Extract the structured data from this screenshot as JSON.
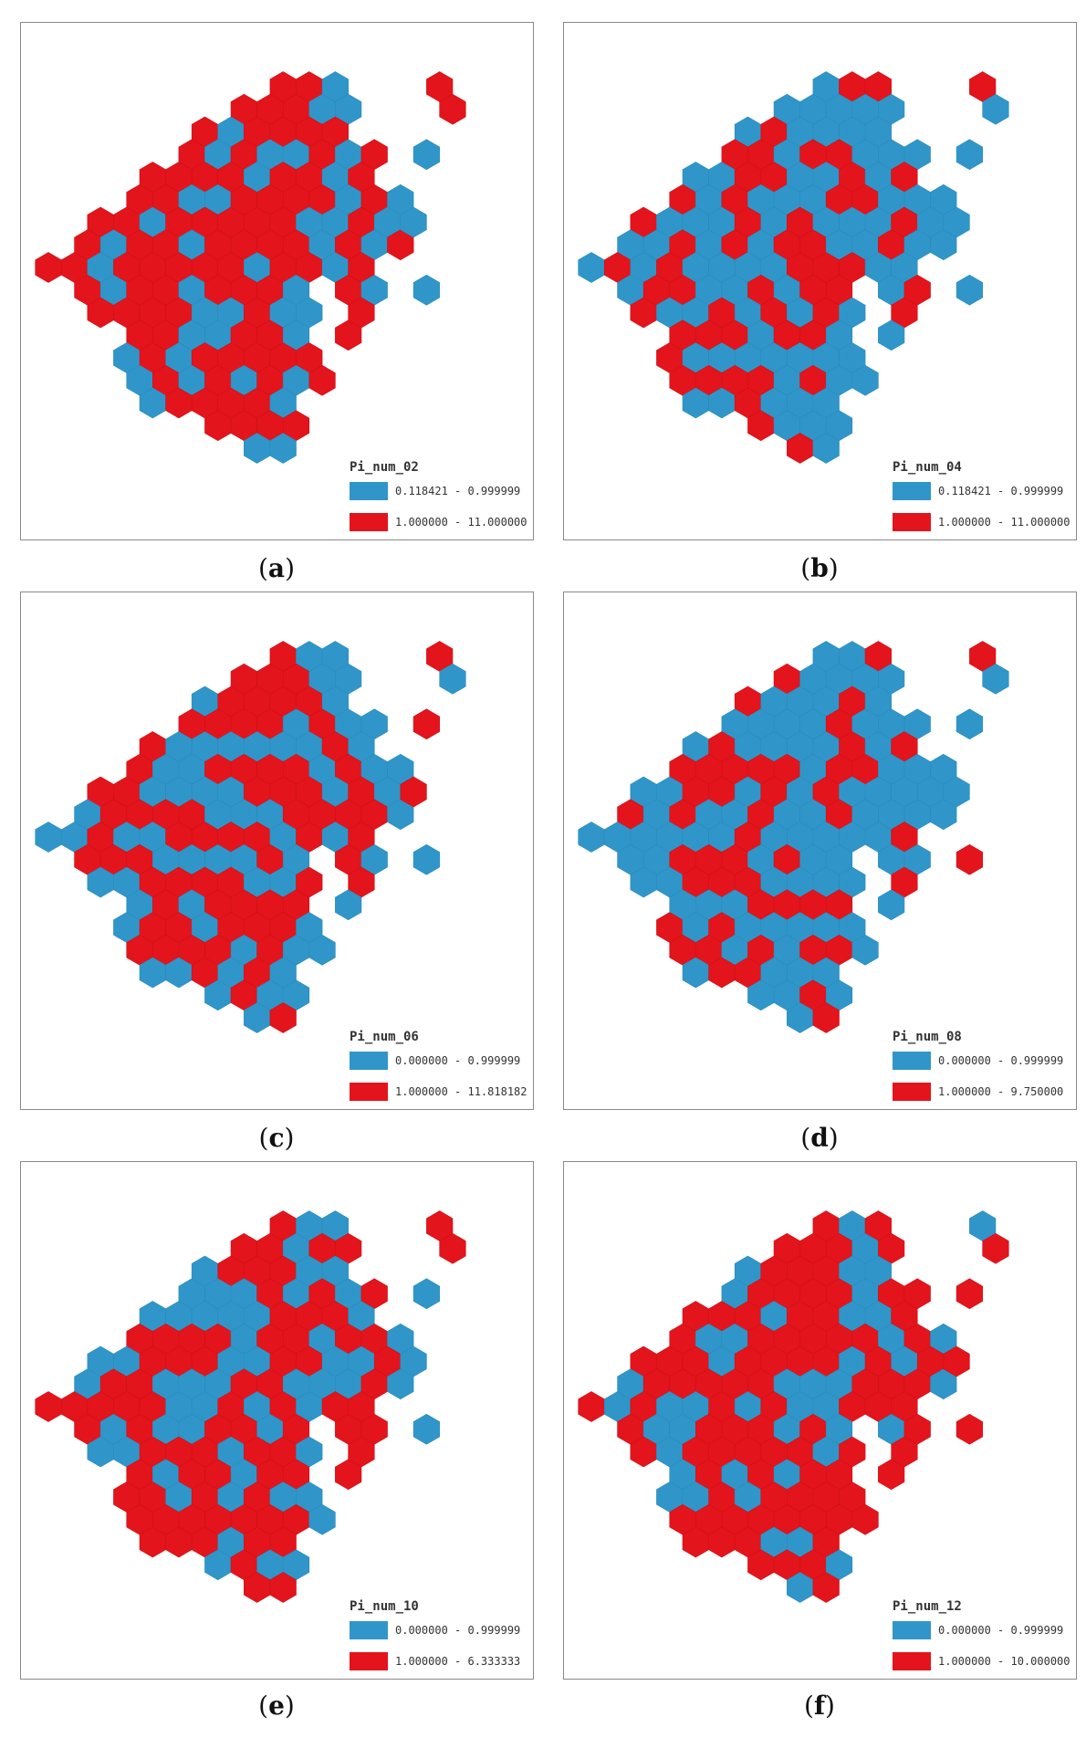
{
  "colors": {
    "low": "#3096c9",
    "high": "#e3141b"
  },
  "panels": [
    {
      "caption": "a",
      "field": "Pi_num_02",
      "legend": [
        "0.118421 - 0.999999",
        "1.000000 - 11.000000"
      ]
    },
    {
      "caption": "b",
      "field": "Pi_num_04",
      "legend": [
        "0.118421 - 0.999999",
        "1.000000 - 11.000000"
      ]
    },
    {
      "caption": "c",
      "field": "Pi_num_06",
      "legend": [
        "0.000000 - 0.999999",
        "1.000000 - 11.818182"
      ]
    },
    {
      "caption": "d",
      "field": "Pi_num_08",
      "legend": [
        "0.000000 - 0.999999",
        "1.000000 - 9.750000"
      ]
    },
    {
      "caption": "e",
      "field": "Pi_num_10",
      "legend": [
        "0.000000 - 0.999999",
        "1.000000 - 6.333333"
      ]
    },
    {
      "caption": "f",
      "field": "Pi_num_12",
      "legend": [
        "0.000000 - 0.999999",
        "1.000000 - 10.000000"
      ]
    }
  ]
}
